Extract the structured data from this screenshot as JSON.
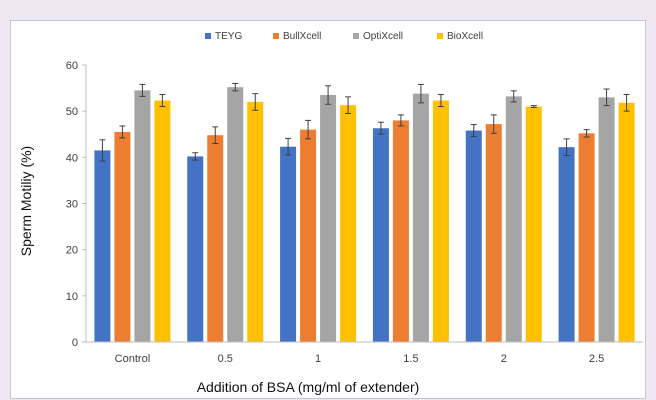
{
  "chart_data": {
    "type": "bar",
    "title": "",
    "xlabel": "Addition of BSA (mg/ml of extender)",
    "ylabel": "Sperm Motiliy (%)",
    "ylim": [
      0,
      60
    ],
    "yticks": [
      "0",
      "10",
      "20",
      "30",
      "40",
      "50",
      "60"
    ],
    "grid": false,
    "legend_position": "top",
    "categories": [
      "Control",
      "0.5",
      "1",
      "1.5",
      "2",
      "2.5"
    ],
    "series": [
      {
        "name": "TEYG",
        "color": "#4472c4",
        "values": [
          41.5,
          40.2,
          42.3,
          46.3,
          45.8,
          42.2
        ],
        "errors": [
          2.3,
          0.8,
          1.8,
          1.3,
          1.3,
          1.8
        ]
      },
      {
        "name": "BullXcell",
        "color": "#ed7d31",
        "values": [
          45.5,
          44.8,
          46.0,
          48.0,
          47.2,
          45.2
        ],
        "errors": [
          1.3,
          1.8,
          2.0,
          1.2,
          2.0,
          0.8
        ]
      },
      {
        "name": "OptiXcell",
        "color": "#a5a5a5",
        "values": [
          54.5,
          55.2,
          53.5,
          53.8,
          53.2,
          53.0
        ],
        "errors": [
          1.3,
          0.8,
          2.0,
          2.0,
          1.2,
          1.8
        ]
      },
      {
        "name": "BioXcell",
        "color": "#ffc000",
        "values": [
          52.3,
          52.0,
          51.3,
          52.3,
          51.0,
          51.8
        ],
        "errors": [
          1.3,
          1.8,
          1.8,
          1.3,
          0.2,
          1.8
        ]
      }
    ]
  }
}
